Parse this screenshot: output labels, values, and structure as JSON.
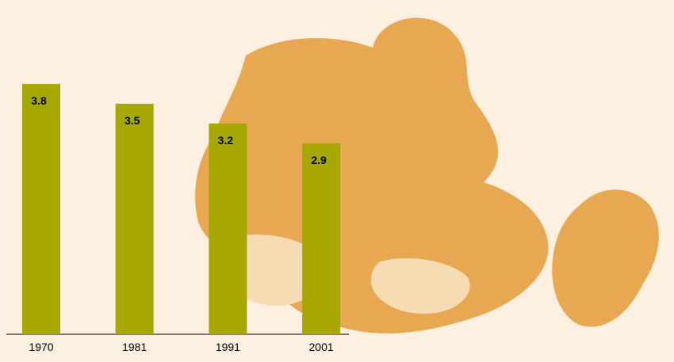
{
  "chart_data": {
    "type": "bar",
    "categories": [
      "1970",
      "1981",
      "1991",
      "2001"
    ],
    "values": [
      3.8,
      3.5,
      3.2,
      2.9
    ],
    "color": "#a6a800"
  }
}
